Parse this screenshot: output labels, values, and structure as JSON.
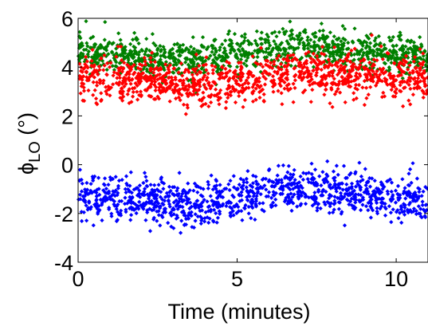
{
  "chart_data": {
    "type": "scatter",
    "title": "",
    "xlabel": "Time (minutes)",
    "ylabel": {
      "symbol": "ϕ",
      "subscript": "LO",
      "unit": " (°)"
    },
    "xlim": [
      0,
      11
    ],
    "ylim": [
      -4,
      6
    ],
    "xticks": [
      0,
      5,
      10
    ],
    "yticks": [
      -4,
      -2,
      0,
      2,
      4,
      6
    ],
    "x_tick_labels": [
      "0",
      "5",
      "10"
    ],
    "y_tick_labels": [
      "-4",
      "-2",
      "0",
      "2",
      "4",
      "6"
    ],
    "grid": false,
    "legend": "none",
    "marker": "diamond",
    "time_range": [
      0,
      11
    ],
    "samples_per_series": 1050,
    "series": [
      {
        "color": "#008000",
        "trend": [
          [
            0,
            4.7
          ],
          [
            2,
            4.4
          ],
          [
            3.5,
            4.3
          ],
          [
            5,
            4.6
          ],
          [
            7,
            4.9
          ],
          [
            9,
            4.6
          ],
          [
            11,
            4.4
          ]
        ],
        "spread": 0.75
      },
      {
        "color": "#ff0000",
        "trend": [
          [
            0,
            3.6
          ],
          [
            2,
            3.5
          ],
          [
            3.5,
            3.2
          ],
          [
            5,
            3.4
          ],
          [
            7,
            3.8
          ],
          [
            9,
            3.6
          ],
          [
            11,
            3.5
          ]
        ],
        "spread": 0.9
      },
      {
        "color": "#0000ff",
        "trend": [
          [
            0,
            -1.3
          ],
          [
            2,
            -1.4
          ],
          [
            3.5,
            -1.6
          ],
          [
            5,
            -1.3
          ],
          [
            7,
            -0.9
          ],
          [
            9,
            -1.2
          ],
          [
            11,
            -1.5
          ]
        ],
        "spread": 0.9
      }
    ]
  }
}
